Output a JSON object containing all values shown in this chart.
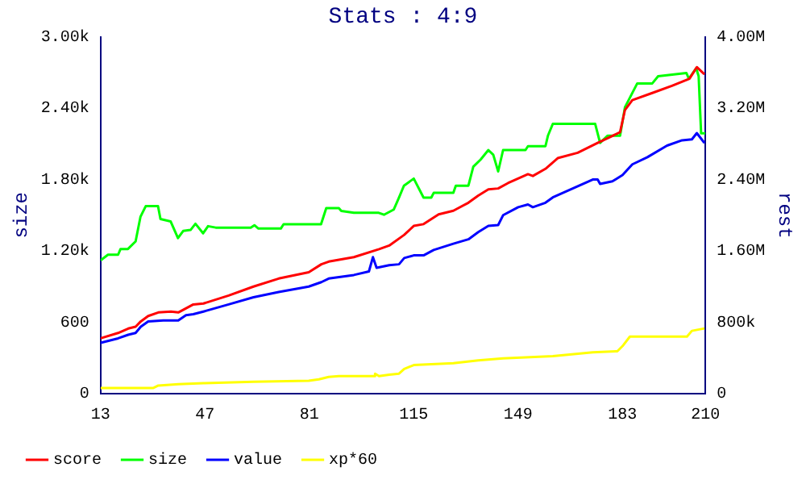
{
  "chart_data": {
    "type": "line",
    "title": "Stats : 4:9",
    "ylabel": "size",
    "y2label": "rest",
    "legend": "bottom left",
    "grid": false,
    "xlim": [
      13,
      210
    ],
    "xticks": [
      13,
      47,
      81,
      115,
      149,
      183,
      210
    ],
    "ylim": [
      0,
      3000
    ],
    "yticks": [
      0,
      600,
      {
        "value": 1200,
        "label": "1.20k"
      },
      {
        "value": 1800,
        "label": "1.80k"
      },
      {
        "value": 2400,
        "label": "2.40k"
      },
      {
        "value": 3000,
        "label": "3.00k"
      }
    ],
    "y2lim": [
      0,
      4000000
    ],
    "y2ticks": [
      0,
      {
        "value": 800000,
        "label": "800k"
      },
      {
        "value": 1600000,
        "label": "1.60M"
      },
      {
        "value": 2400000,
        "label": "2.40M"
      },
      {
        "value": 3200000,
        "label": "3.20M"
      },
      {
        "value": 4000000,
        "label": "4.00M"
      }
    ],
    "series": [
      {
        "name": "score",
        "color": "#ff0000",
        "axis": "y2",
        "x": [
          13,
          18.7,
          22,
          24.4,
          26.1,
          28.5,
          31.8,
          35.9,
          38.3,
          43.2,
          46.5,
          54.7,
          62.8,
          71,
          80.8,
          84.9,
          87.3,
          95.5,
          103.7,
          107,
          111.9,
          115,
          118.2,
          123.1,
          127.9,
          132.8,
          136,
          139.3,
          142.5,
          145.7,
          152.2,
          153.8,
          157.9,
          161.9,
          168.4,
          174.9,
          182.2,
          183.8,
          186.2,
          192.7,
          199.1,
          204.8,
          207.2,
          209.7
        ],
        "values": [
          620000,
          680000,
          730000,
          750000,
          810000,
          870000,
          910000,
          920000,
          910000,
          1000000,
          1010000,
          1100000,
          1200000,
          1290000,
          1360000,
          1450000,
          1480000,
          1530000,
          1620000,
          1660000,
          1780000,
          1880000,
          1900000,
          2010000,
          2050000,
          2140000,
          2220000,
          2290000,
          2300000,
          2360000,
          2460000,
          2440000,
          2520000,
          2640000,
          2700000,
          2810000,
          2930000,
          3180000,
          3290000,
          3370000,
          3450000,
          3530000,
          3660000,
          3580000
        ]
      },
      {
        "name": "size",
        "color": "#00ff00",
        "x": [
          13,
          15.4,
          18.7,
          19.5,
          21.9,
          24.4,
          26,
          27.7,
          31.7,
          32.5,
          35.8,
          38.2,
          39.9,
          42.3,
          43.9,
          46.4,
          48,
          50.5,
          61.9,
          63.1,
          64.4,
          71.7,
          72.6,
          84.8,
          86.5,
          90.6,
          91.4,
          95.5,
          103.6,
          105.3,
          108.5,
          110.2,
          111.8,
          115,
          118.2,
          120.7,
          121.5,
          127.9,
          128.7,
          132.8,
          134.4,
          136.8,
          139.3,
          140.9,
          142.5,
          144.1,
          151.4,
          152.2,
          157.9,
          158.7,
          160.3,
          174.1,
          175.7,
          178.1,
          182.2,
          183.8,
          185.4,
          187.8,
          192.7,
          194.6,
          203.8,
          204.6,
          207,
          207.8,
          208.6,
          210
        ],
        "values": [
          1120,
          1168,
          1168,
          1216,
          1216,
          1280,
          1488,
          1576,
          1576,
          1468,
          1448,
          1308,
          1368,
          1376,
          1428,
          1348,
          1408,
          1396,
          1396,
          1416,
          1388,
          1388,
          1424,
          1424,
          1560,
          1560,
          1536,
          1520,
          1520,
          1504,
          1548,
          1648,
          1748,
          1808,
          1648,
          1648,
          1688,
          1688,
          1748,
          1748,
          1908,
          1968,
          2048,
          2008,
          1868,
          2048,
          2048,
          2080,
          2080,
          2168,
          2268,
          2268,
          2108,
          2168,
          2168,
          2408,
          2488,
          2608,
          2608,
          2668,
          2696,
          2648,
          2736,
          2668,
          2188,
          2188
        ]
      },
      {
        "name": "value",
        "color": "#0000ff",
        "axis": "y2",
        "x": [
          13,
          18.7,
          22,
          24.4,
          26.1,
          28.5,
          33.4,
          38.3,
          40.8,
          43.2,
          46.5,
          54.7,
          62.8,
          71,
          80.8,
          84.9,
          87.3,
          95.5,
          100.4,
          101.7,
          102.9,
          107,
          110.2,
          111.9,
          115,
          118.2,
          121.5,
          127.9,
          132.8,
          136,
          139.3,
          142.5,
          144.1,
          149,
          152.2,
          153.8,
          157.9,
          160.3,
          166.8,
          173.3,
          174.9,
          175.7,
          179.7,
          183,
          186.2,
          191.1,
          197.5,
          202.4,
          205.6,
          207.2,
          209.7
        ],
        "values": [
          570000,
          620000,
          660000,
          680000,
          750000,
          810000,
          820000,
          820000,
          880000,
          890000,
          920000,
          1000000,
          1080000,
          1140000,
          1200000,
          1250000,
          1290000,
          1330000,
          1370000,
          1530000,
          1410000,
          1440000,
          1450000,
          1520000,
          1550000,
          1550000,
          1610000,
          1680000,
          1730000,
          1810000,
          1880000,
          1890000,
          2000000,
          2090000,
          2120000,
          2090000,
          2140000,
          2200000,
          2300000,
          2400000,
          2400000,
          2350000,
          2380000,
          2450000,
          2570000,
          2650000,
          2780000,
          2840000,
          2850000,
          2920000,
          2810000
        ]
      },
      {
        "name": "xp*60",
        "color": "#ffff00",
        "axis": "y2",
        "x": [
          13,
          30.2,
          31.8,
          38.3,
          46.5,
          62.8,
          80.8,
          84.1,
          87.3,
          90.6,
          102.1,
          102.4,
          103.7,
          107,
          110.2,
          111.9,
          115,
          127.9,
          136,
          144.1,
          160.3,
          173.3,
          181.3,
          183,
          185.4,
          204,
          205.6,
          209.7
        ],
        "values": [
          64000,
          64000,
          91000,
          107000,
          117000,
          133000,
          144000,
          160000,
          187000,
          197000,
          197000,
          224000,
          197000,
          213000,
          224000,
          277000,
          320000,
          341000,
          373000,
          395000,
          421000,
          464000,
          475000,
          533000,
          640000,
          640000,
          704000,
          731000
        ]
      }
    ]
  }
}
